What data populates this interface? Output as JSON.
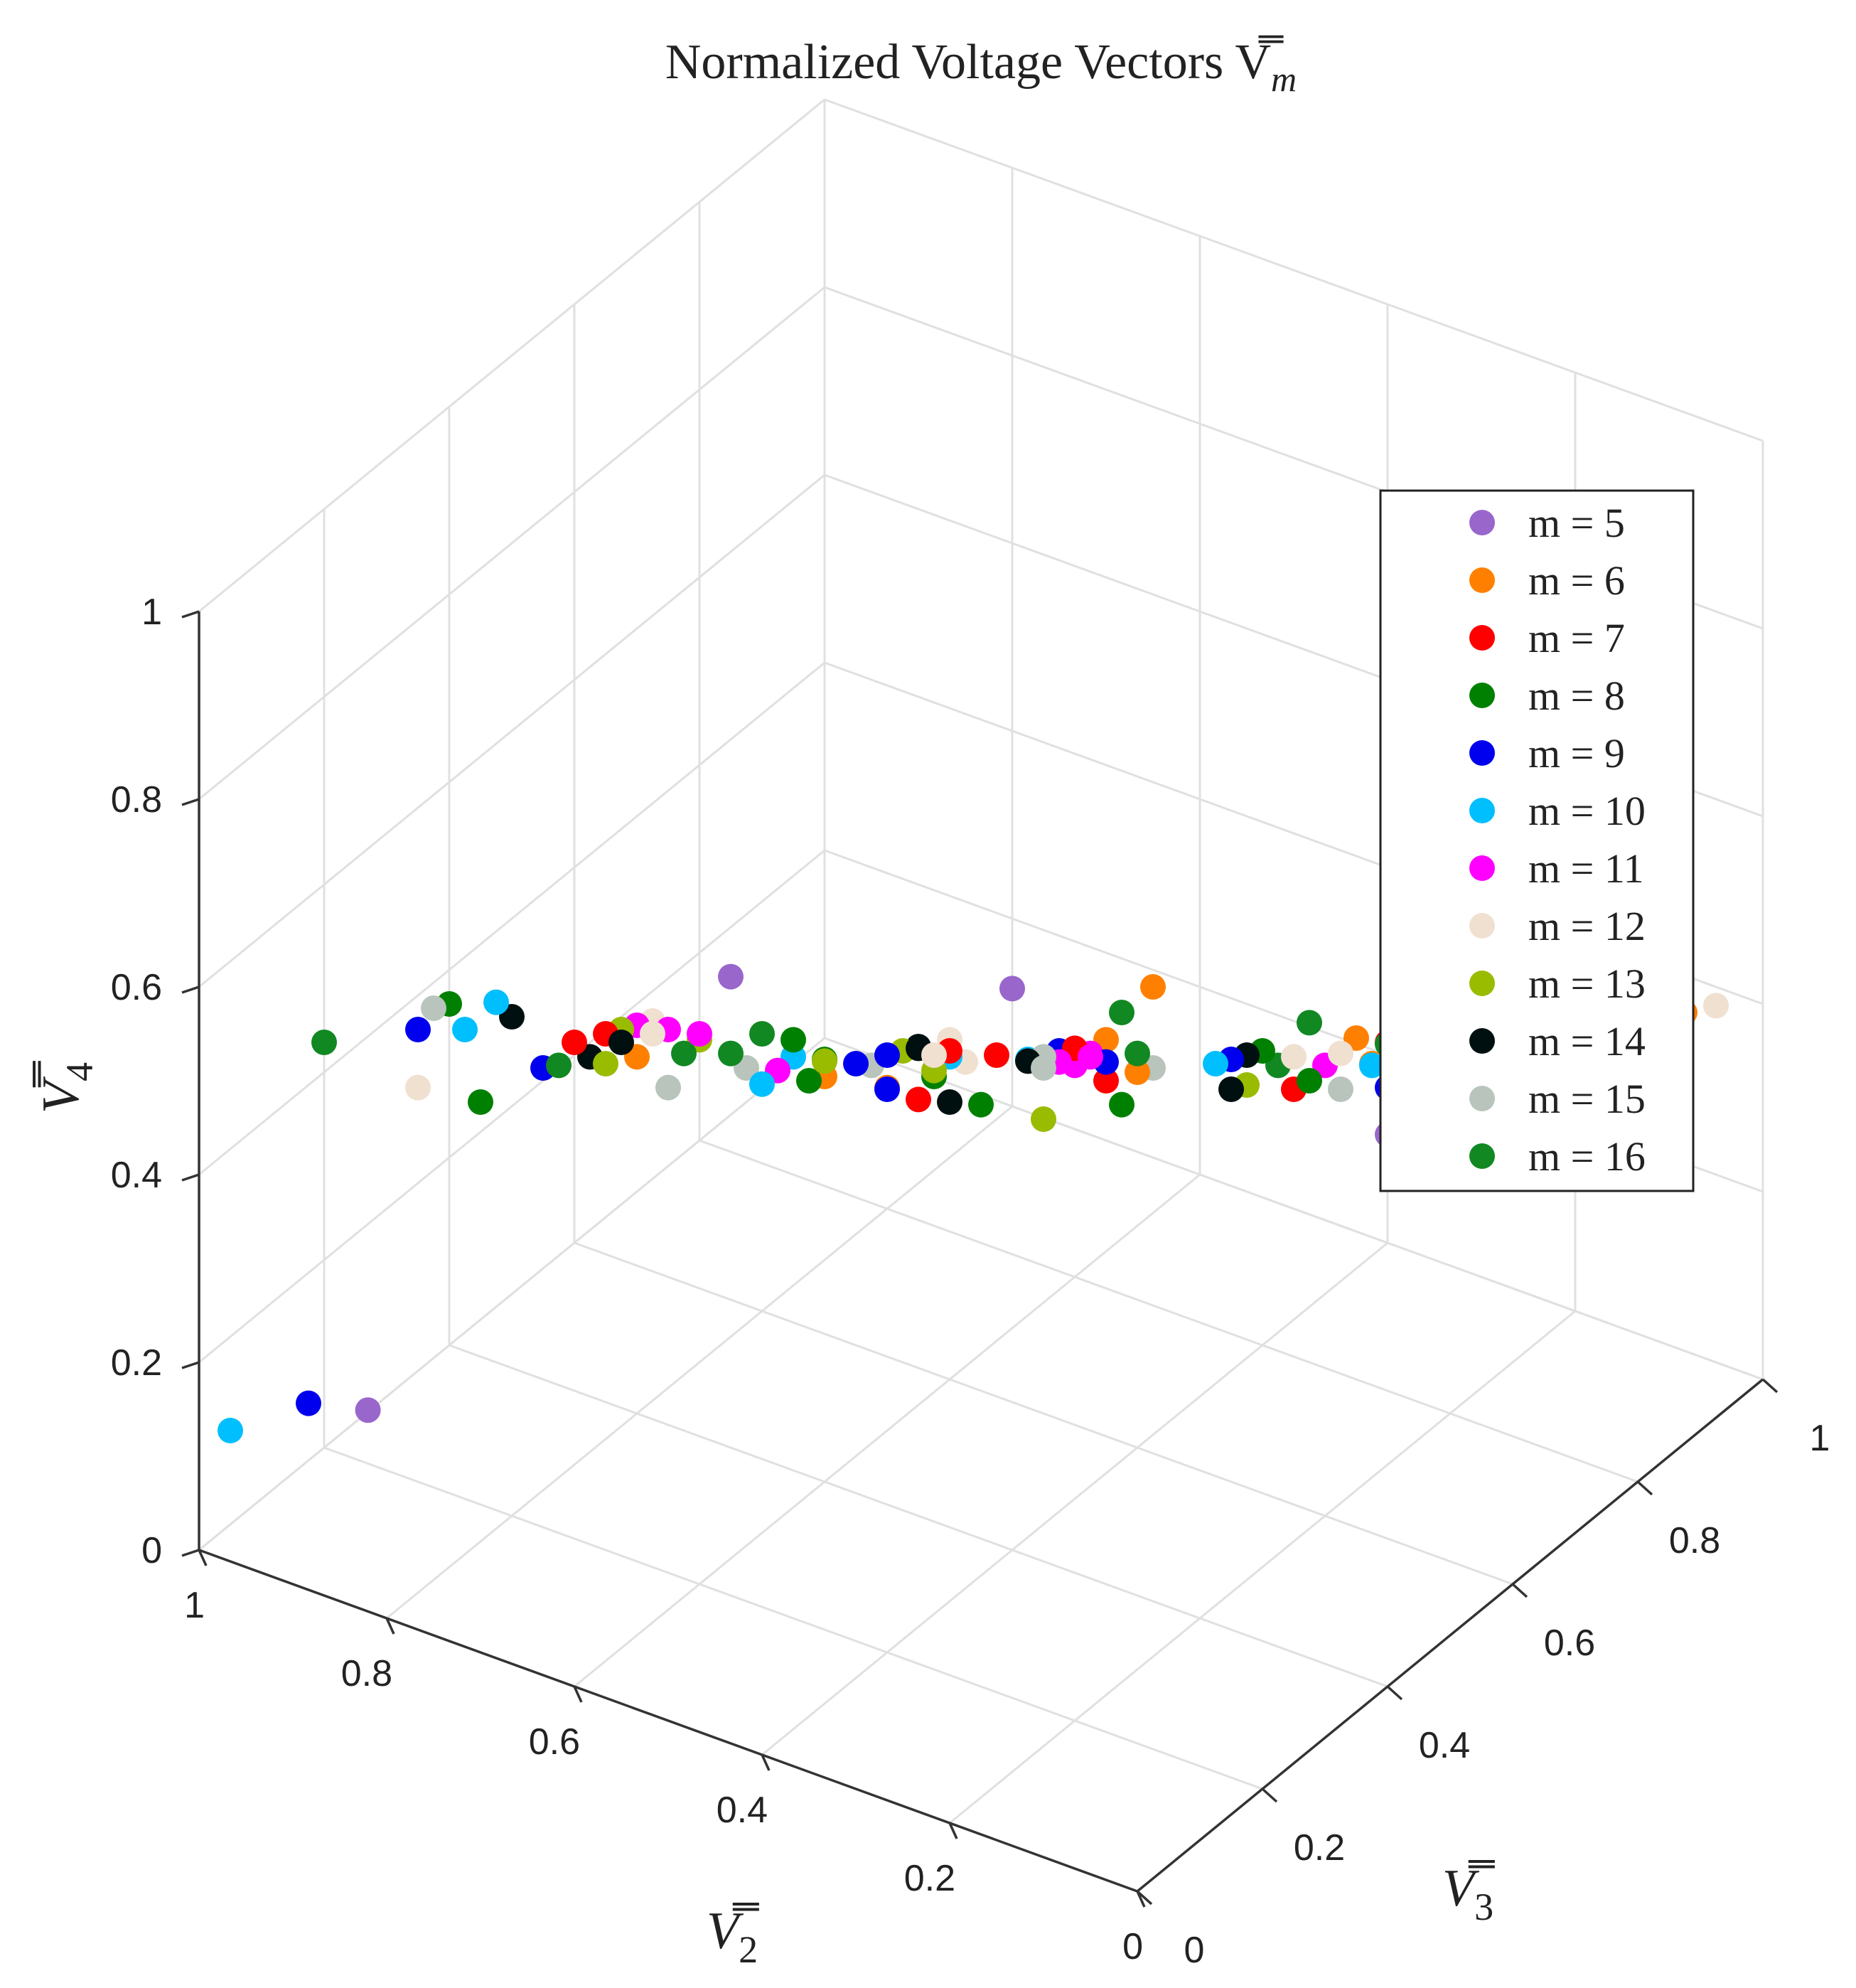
{
  "chart_data": {
    "type": "scatter",
    "dimensions": 3,
    "title": "Normalized Voltage Vectors V̿",
    "title_subscript": "m",
    "xlabel": "V̿",
    "xlabel_subscript": "2",
    "ylabel": "V̿",
    "ylabel_subscript": "3",
    "zlabel": "V̿",
    "zlabel_subscript": "4",
    "xlim": [
      0,
      1
    ],
    "ylim": [
      0,
      1
    ],
    "zlim": [
      0,
      1
    ],
    "x_ticks": [
      "0",
      "0.2",
      "0.4",
      "0.6",
      "0.8",
      "1"
    ],
    "y_ticks": [
      "0",
      "0.2",
      "0.4",
      "0.6",
      "0.8",
      "1"
    ],
    "z_ticks": [
      "0",
      "0.2",
      "0.4",
      "0.6",
      "0.8",
      "1"
    ],
    "grid": true,
    "legend_position": "right",
    "series": [
      {
        "name": "m = 5",
        "color": "#9966cc",
        "points": [
          [
            0.9,
            0.12,
            0.12
          ],
          [
            0.1,
            0.55,
            0.47
          ],
          [
            0.05,
            0.85,
            0.35
          ],
          [
            0.5,
            0.55,
            0.48
          ],
          [
            0.6,
            0.25,
            0.62
          ],
          [
            0.15,
            0.8,
            0.42
          ]
        ]
      },
      {
        "name": "m = 6",
        "color": "#ff8000",
        "points": [
          [
            0.3,
            0.05,
            0.72
          ],
          [
            0.1,
            0.5,
            0.6
          ],
          [
            0.05,
            0.95,
            0.4
          ],
          [
            0.3,
            0.4,
            0.58
          ],
          [
            0.55,
            0.85,
            0.3
          ],
          [
            0.15,
            0.6,
            0.5
          ],
          [
            0.4,
            0.6,
            0.4
          ],
          [
            0.8,
            0.4,
            0.38
          ],
          [
            0.5,
            0.25,
            0.55
          ],
          [
            0.2,
            0.8,
            0.38
          ]
        ]
      },
      {
        "name": "m = 7",
        "color": "#ff0000",
        "points": [
          [
            0.3,
            0.1,
            0.68
          ],
          [
            0.1,
            0.4,
            0.6
          ],
          [
            0.05,
            0.8,
            0.5
          ],
          [
            0.4,
            0.5,
            0.48
          ],
          [
            0.7,
            0.2,
            0.55
          ],
          [
            0.2,
            0.7,
            0.45
          ],
          [
            0.6,
            0.6,
            0.35
          ],
          [
            0.35,
            0.3,
            0.6
          ],
          [
            0.8,
            0.3,
            0.45
          ],
          [
            0.5,
            0.7,
            0.3
          ],
          [
            0.15,
            0.9,
            0.38
          ]
        ]
      },
      {
        "name": "m = 8",
        "color": "#008000",
        "points": [
          [
            0.25,
            0.05,
            0.75
          ],
          [
            0.8,
            0.1,
            0.6
          ],
          [
            0.1,
            0.7,
            0.5
          ],
          [
            0.6,
            0.4,
            0.45
          ],
          [
            0.3,
            0.2,
            0.62
          ],
          [
            0.05,
            0.9,
            0.42
          ],
          [
            0.45,
            0.65,
            0.32
          ],
          [
            0.7,
            0.5,
            0.38
          ],
          [
            0.2,
            0.5,
            0.55
          ],
          [
            0.55,
            0.3,
            0.5
          ],
          [
            0.35,
            0.8,
            0.3
          ],
          [
            0.9,
            0.3,
            0.35
          ]
        ]
      },
      {
        "name": "m = 9",
        "color": "#0000ee",
        "points": [
          [
            0.8,
            0.05,
            0.6
          ],
          [
            0.4,
            0.2,
            0.6
          ],
          [
            0.1,
            0.55,
            0.52
          ],
          [
            0.6,
            0.5,
            0.4
          ],
          [
            0.35,
            0.4,
            0.55
          ],
          [
            0.8,
            0.25,
            0.45
          ],
          [
            0.2,
            0.8,
            0.4
          ],
          [
            0.5,
            0.7,
            0.32
          ],
          [
            0.7,
            0.6,
            0.3
          ],
          [
            0.95,
            0.1,
            0.12
          ],
          [
            0.3,
            0.6,
            0.45
          ]
        ]
      },
      {
        "name": "m = 10",
        "color": "#00bfff",
        "points": [
          [
            0.75,
            0.1,
            0.62
          ],
          [
            0.4,
            0.3,
            0.58
          ],
          [
            0.1,
            0.65,
            0.48
          ],
          [
            0.6,
            0.35,
            0.48
          ],
          [
            0.85,
            0.2,
            0.5
          ],
          [
            0.25,
            0.75,
            0.38
          ],
          [
            0.45,
            0.5,
            0.45
          ],
          [
            0.7,
            0.45,
            0.36
          ],
          [
            0.15,
            0.85,
            0.35
          ],
          [
            1.0,
            0.05,
            0.1
          ],
          [
            0.35,
            0.65,
            0.4
          ]
        ]
      },
      {
        "name": "m = 11",
        "color": "#ff00ff",
        "points": [
          [
            0.6,
            0.1,
            0.65
          ],
          [
            0.3,
            0.35,
            0.58
          ],
          [
            0.1,
            0.75,
            0.45
          ],
          [
            0.7,
            0.3,
            0.5
          ],
          [
            0.45,
            0.55,
            0.42
          ],
          [
            0.2,
            0.6,
            0.48
          ],
          [
            0.8,
            0.5,
            0.35
          ],
          [
            0.55,
            0.75,
            0.28
          ],
          [
            0.35,
            0.45,
            0.52
          ],
          [
            0.15,
            0.95,
            0.33
          ],
          [
            0.65,
            0.4,
            0.42
          ]
        ]
      },
      {
        "name": "m = 12",
        "color": "#f0e0d0",
        "points": [
          [
            0.55,
            0.05,
            0.7
          ],
          [
            0.35,
            0.25,
            0.62
          ],
          [
            0.05,
            0.6,
            0.55
          ],
          [
            0.75,
            0.35,
            0.45
          ],
          [
            0.5,
            0.45,
            0.48
          ],
          [
            0.25,
            0.7,
            0.42
          ],
          [
            0.65,
            0.65,
            0.3
          ],
          [
            0.9,
            0.2,
            0.42
          ],
          [
            0.15,
            0.75,
            0.4
          ],
          [
            0.4,
            0.85,
            0.28
          ],
          [
            0.05,
            1.0,
            0.38
          ]
        ]
      },
      {
        "name": "m = 13",
        "color": "#99bb00",
        "points": [
          [
            0.65,
            0.15,
            0.6
          ],
          [
            0.3,
            0.3,
            0.55
          ],
          [
            0.1,
            0.6,
            0.5
          ],
          [
            0.55,
            0.45,
            0.45
          ],
          [
            0.8,
            0.35,
            0.4
          ],
          [
            0.2,
            0.75,
            0.42
          ],
          [
            0.45,
            0.35,
            0.52
          ],
          [
            0.7,
            0.55,
            0.33
          ],
          [
            0.35,
            0.7,
            0.35
          ],
          [
            0.15,
            0.9,
            0.4
          ],
          [
            0.6,
            0.2,
            0.58
          ]
        ]
      },
      {
        "name": "m = 14",
        "color": "#001010",
        "points": [
          [
            0.7,
            0.05,
            0.65
          ],
          [
            0.3,
            0.15,
            0.65
          ],
          [
            0.1,
            0.65,
            0.52
          ],
          [
            0.5,
            0.4,
            0.5
          ],
          [
            0.75,
            0.25,
            0.48
          ],
          [
            0.25,
            0.55,
            0.5
          ],
          [
            0.6,
            0.55,
            0.38
          ],
          [
            0.4,
            0.75,
            0.3
          ],
          [
            0.85,
            0.45,
            0.35
          ],
          [
            0.1,
            0.85,
            0.4
          ],
          [
            0.55,
            0.65,
            0.33
          ]
        ]
      },
      {
        "name": "m = 15",
        "color": "#b8c4bc",
        "points": [
          [
            0.85,
            0.15,
            0.55
          ],
          [
            0.45,
            0.25,
            0.58
          ],
          [
            0.15,
            0.55,
            0.5
          ],
          [
            0.65,
            0.35,
            0.45
          ],
          [
            0.35,
            0.55,
            0.45
          ],
          [
            0.8,
            0.45,
            0.32
          ],
          [
            0.2,
            0.85,
            0.38
          ],
          [
            0.5,
            0.6,
            0.38
          ],
          [
            0.6,
            0.75,
            0.25
          ],
          [
            0.05,
            0.7,
            0.48
          ]
        ]
      },
      {
        "name": "m = 16",
        "color": "#118822",
        "points": [
          [
            0.9,
            0.05,
            0.55
          ],
          [
            0.5,
            0.15,
            0.65
          ],
          [
            0.15,
            0.45,
            0.58
          ],
          [
            0.7,
            0.4,
            0.42
          ],
          [
            0.4,
            0.6,
            0.42
          ],
          [
            0.85,
            0.35,
            0.38
          ],
          [
            0.25,
            0.65,
            0.48
          ],
          [
            0.55,
            0.8,
            0.3
          ],
          [
            0.1,
            0.95,
            0.42
          ],
          [
            0.65,
            0.25,
            0.52
          ],
          [
            0.3,
            0.85,
            0.33
          ]
        ]
      }
    ]
  }
}
